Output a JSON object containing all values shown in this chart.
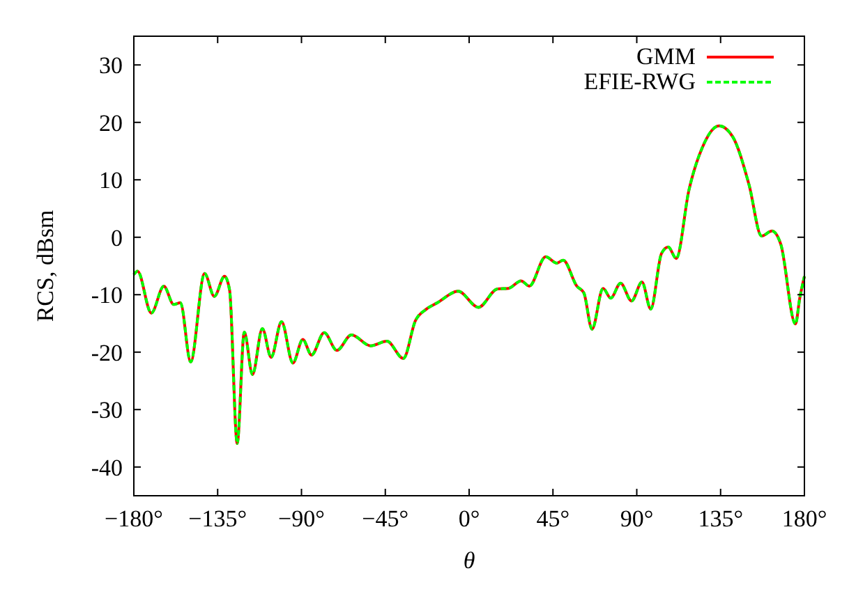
{
  "chart_data": {
    "type": "line",
    "xlabel": "θ",
    "ylabel": "RCS, dBsm",
    "xlim": [
      -180,
      180
    ],
    "ylim": [
      -45,
      35
    ],
    "xticks": [
      {
        "value": -180,
        "label": "−180°"
      },
      {
        "value": -135,
        "label": "−135°"
      },
      {
        "value": -90,
        "label": "−90°"
      },
      {
        "value": -45,
        "label": "−45°"
      },
      {
        "value": 0,
        "label": "0°"
      },
      {
        "value": 45,
        "label": "45°"
      },
      {
        "value": 90,
        "label": "90°"
      },
      {
        "value": 135,
        "label": "135°"
      },
      {
        "value": 180,
        "label": "180°"
      }
    ],
    "yticks": [
      -40,
      -30,
      -20,
      -10,
      0,
      10,
      20,
      30
    ],
    "x": [
      -180,
      -178,
      -170.6,
      -163.9,
      -158.6,
      -155,
      -149.5,
      -142,
      -136.8,
      -131.3,
      -128.6,
      -124.5,
      -120.7,
      -116.3,
      -111,
      -106.3,
      -100.7,
      -94.6,
      -89.3,
      -84.6,
      -77.8,
      -71,
      -63.2,
      -52.9,
      -44.1,
      -35.3,
      -28.8,
      -22.9,
      -17,
      -5.9,
      5,
      15.2,
      21.1,
      27.9,
      32.3,
      41.1,
      47,
      50.5,
      57.8,
      61.6,
      66,
      71.9,
      76,
      81.3,
      87.2,
      92.8,
      97.5,
      103.3,
      106.9,
      111.2,
      118,
      125.3,
      134.2,
      141.5,
      150.3,
      157,
      162.6,
      167.3,
      175.2,
      177.5,
      180
    ],
    "series": [
      {
        "name": "GMM",
        "color": "#ff0000",
        "line_style": "solid",
        "values": [
          -6.5,
          -5.9,
          -13.2,
          -8.5,
          -11.7,
          -11.4,
          -21.7,
          -6.3,
          -10.3,
          -6.8,
          -9.2,
          -35.9,
          -16.5,
          -23.9,
          -15.9,
          -20.9,
          -14.7,
          -21.9,
          -17.8,
          -20.5,
          -16.6,
          -19.7,
          -17,
          -18.9,
          -18.1,
          -21.1,
          -14.5,
          -12.5,
          -11.4,
          -9.4,
          -12.2,
          -9,
          -8.9,
          -7.6,
          -8.5,
          -3.4,
          -4.5,
          -4,
          -8.5,
          -9.7,
          -16,
          -8.9,
          -10.6,
          -8,
          -11.1,
          -7.8,
          -12.5,
          -2.8,
          -1.7,
          -3.7,
          8.2,
          15.7,
          19.4,
          17.5,
          9.1,
          0.2,
          1.1,
          -1.2,
          -15.1,
          -10.6,
          -6.8
        ]
      },
      {
        "name": "EFIE-RWG",
        "color": "#00ff00",
        "line_style": "dashed",
        "values": [
          -6.5,
          -5.9,
          -13.2,
          -8.5,
          -11.7,
          -11.4,
          -21.7,
          -6.3,
          -10.3,
          -6.8,
          -9.2,
          -35.9,
          -16.5,
          -23.9,
          -15.9,
          -20.9,
          -14.7,
          -21.9,
          -17.8,
          -20.5,
          -16.6,
          -19.7,
          -17,
          -18.9,
          -18.1,
          -21.1,
          -14.5,
          -12.5,
          -11.4,
          -9.4,
          -12.2,
          -9,
          -8.9,
          -7.6,
          -8.5,
          -3.4,
          -4.5,
          -4,
          -8.5,
          -9.7,
          -16,
          -8.9,
          -10.6,
          -8,
          -11.1,
          -7.8,
          -12.5,
          -2.8,
          -1.7,
          -3.7,
          8.2,
          15.7,
          19.4,
          17.5,
          9.1,
          0.2,
          1.1,
          -1.2,
          -15.1,
          -10.6,
          -6.8
        ]
      }
    ],
    "legend": "top right",
    "grid": false
  }
}
